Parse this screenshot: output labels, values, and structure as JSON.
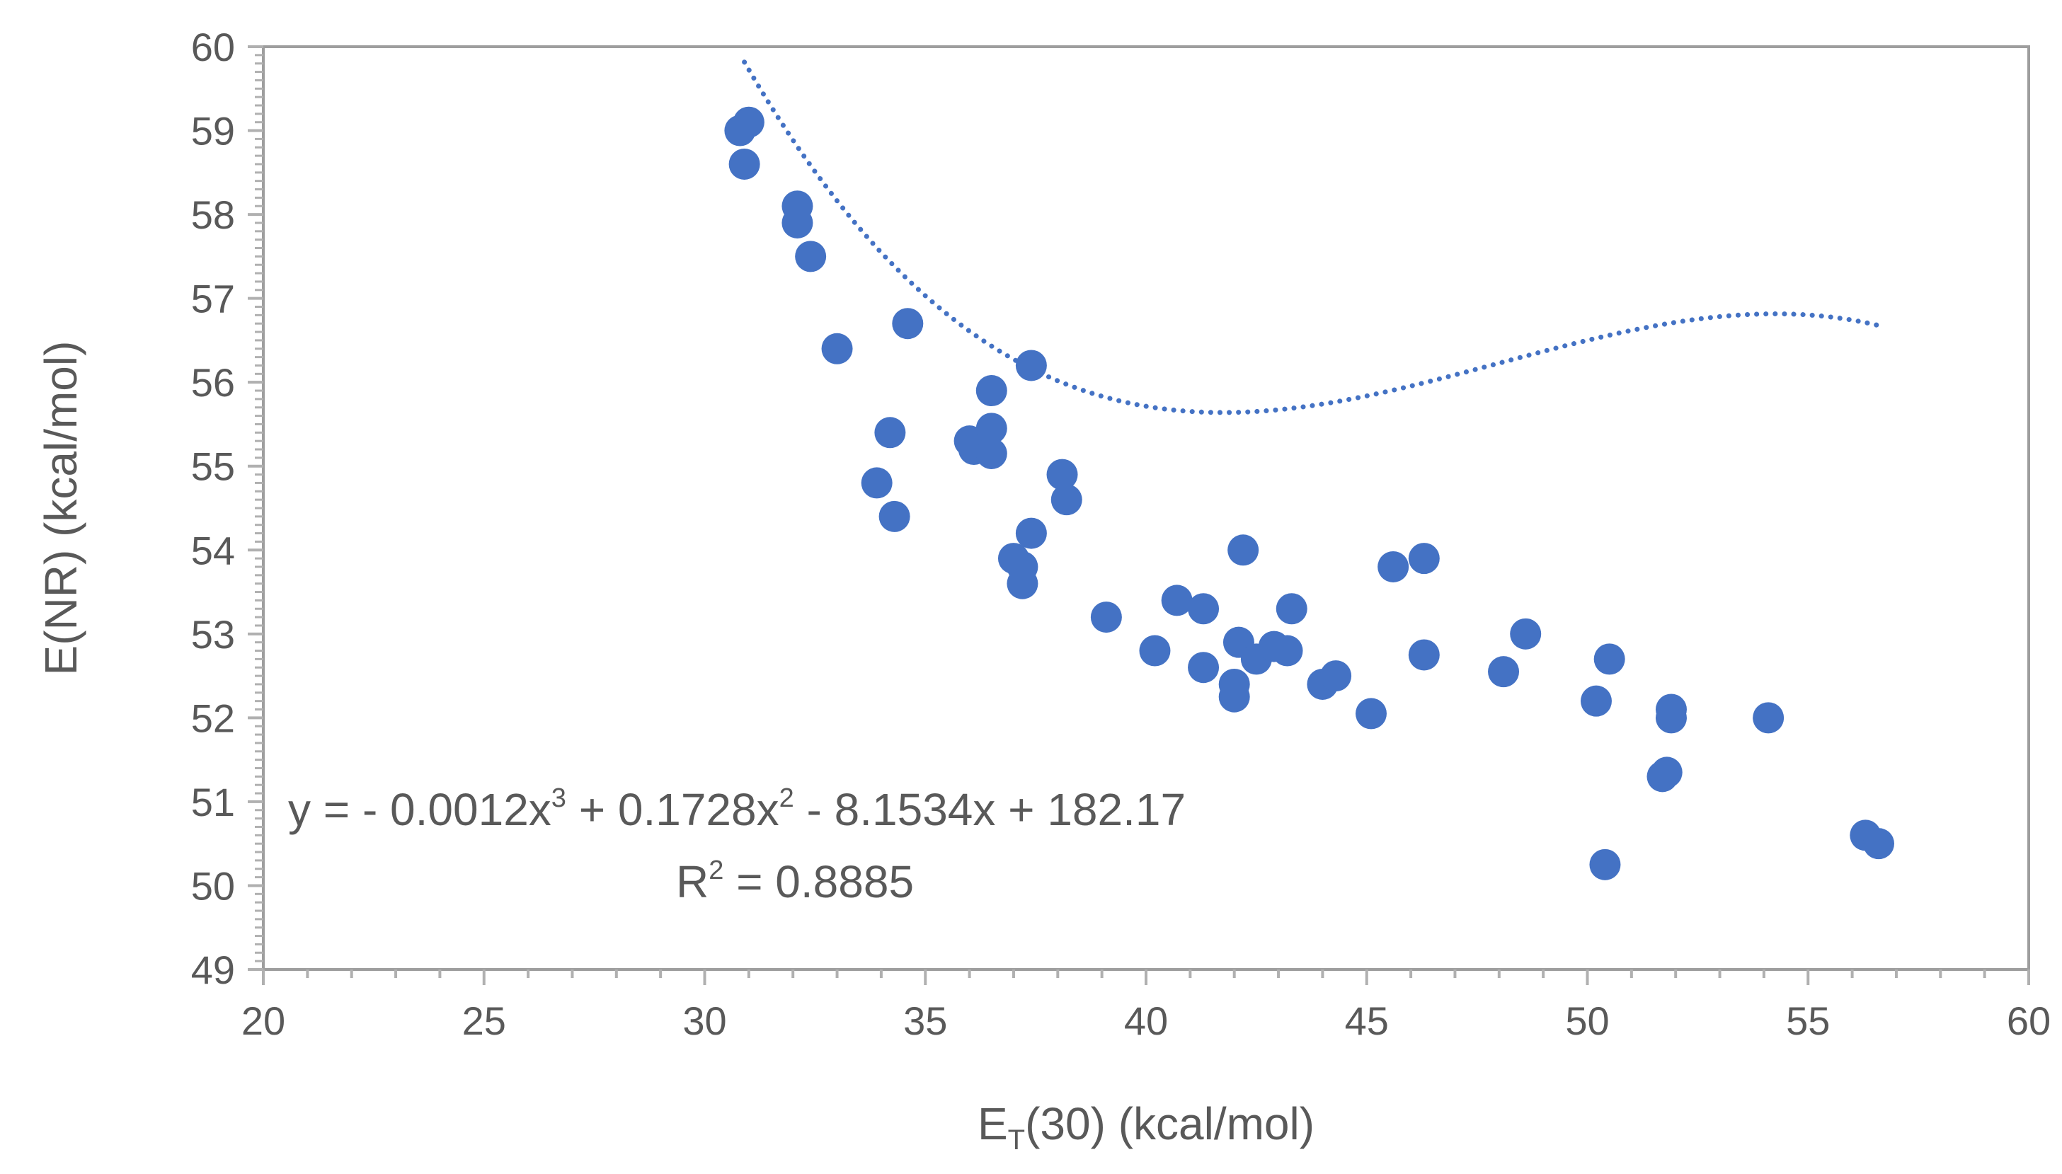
{
  "chart_data": {
    "type": "scatter",
    "xlabel": {
      "main": "E",
      "subscript": "T",
      "rest": "(30) (kcal/mol)"
    },
    "ylabel": "E(NR) (kcal/mol)",
    "xlim": [
      20,
      60
    ],
    "ylim": [
      49,
      60
    ],
    "x_ticks": [
      "20",
      "25",
      "30",
      "35",
      "40",
      "45",
      "50",
      "55",
      "60"
    ],
    "y_ticks": [
      "49",
      "50",
      "51",
      "52",
      "53",
      "54",
      "55",
      "56",
      "57",
      "58",
      "59",
      "60"
    ],
    "grid": false,
    "marker_color": "#4472C4",
    "trendline": {
      "type": "polynomial-3",
      "style": "dotted",
      "color": "#4472C4",
      "coefficients": [
        -0.0012,
        0.1728,
        -8.1534,
        182.17
      ],
      "x_range": [
        30.9,
        56.6
      ],
      "equation": {
        "part1": "y = - 0.0012x",
        "sup1": "3",
        "part2": " + 0.1728x",
        "sup2": "2",
        "part3": " - 8.1534x + 182.17"
      },
      "r2": {
        "label": "R",
        "sup": "2",
        "value": " = 0.8885"
      }
    },
    "points": [
      [
        30.8,
        59.0
      ],
      [
        31.0,
        59.1
      ],
      [
        30.9,
        58.6
      ],
      [
        32.1,
        58.1
      ],
      [
        32.1,
        57.9
      ],
      [
        32.4,
        57.5
      ],
      [
        33.0,
        56.4
      ],
      [
        34.6,
        56.7
      ],
      [
        34.2,
        55.4
      ],
      [
        33.9,
        54.8
      ],
      [
        34.3,
        54.4
      ],
      [
        36.5,
        55.9
      ],
      [
        37.4,
        56.2
      ],
      [
        36.0,
        55.3
      ],
      [
        36.1,
        55.2
      ],
      [
        36.5,
        55.45
      ],
      [
        36.5,
        55.15
      ],
      [
        37.4,
        54.2
      ],
      [
        37.0,
        53.9
      ],
      [
        37.2,
        53.8
      ],
      [
        37.2,
        53.6
      ],
      [
        38.1,
        54.9
      ],
      [
        38.2,
        54.6
      ],
      [
        39.1,
        53.2
      ],
      [
        40.2,
        52.8
      ],
      [
        40.7,
        53.4
      ],
      [
        41.3,
        53.3
      ],
      [
        41.3,
        52.6
      ],
      [
        42.2,
        54.0
      ],
      [
        42.1,
        52.9
      ],
      [
        42.5,
        52.7
      ],
      [
        42.0,
        52.4
      ],
      [
        42.0,
        52.25
      ],
      [
        42.9,
        52.85
      ],
      [
        43.2,
        52.8
      ],
      [
        43.3,
        53.3
      ],
      [
        44.0,
        52.4
      ],
      [
        44.3,
        52.5
      ],
      [
        45.1,
        52.05
      ],
      [
        45.6,
        53.8
      ],
      [
        46.3,
        53.9
      ],
      [
        46.3,
        52.75
      ],
      [
        48.1,
        52.55
      ],
      [
        48.6,
        53.0
      ],
      [
        50.2,
        52.2
      ],
      [
        50.5,
        52.7
      ],
      [
        50.4,
        50.25
      ],
      [
        51.9,
        52.1
      ],
      [
        51.9,
        52.0
      ],
      [
        51.7,
        51.3
      ],
      [
        51.8,
        51.35
      ],
      [
        54.1,
        52.0
      ],
      [
        56.3,
        50.6
      ],
      [
        56.6,
        50.5
      ]
    ]
  }
}
